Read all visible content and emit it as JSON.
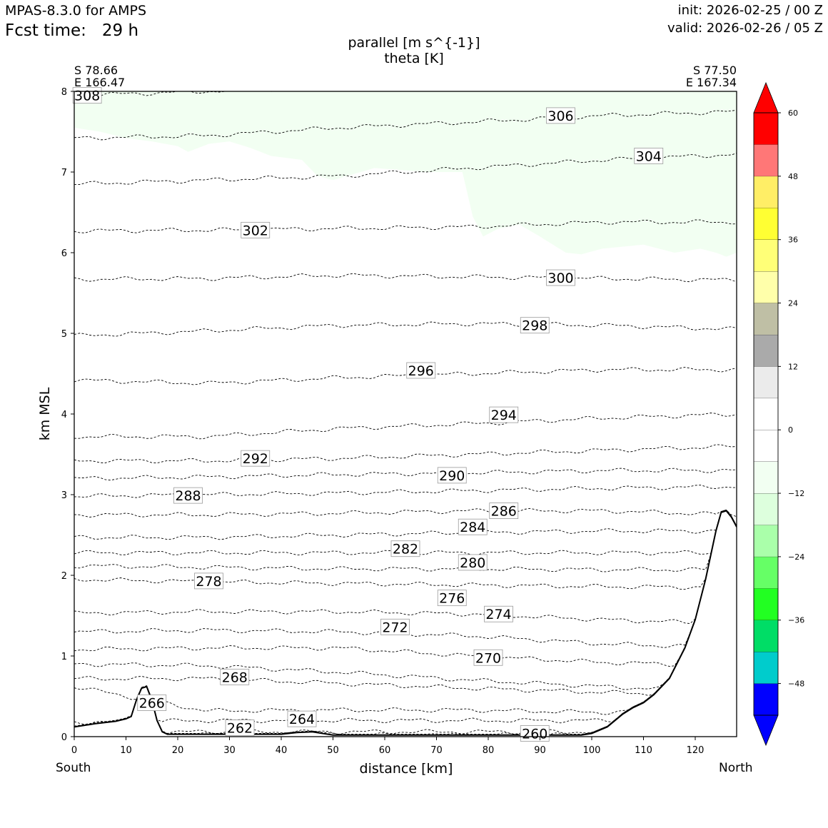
{
  "header": {
    "model": "MPAS-8.3.0 for AMPS",
    "fcst_label": "Fcst time:",
    "fcst_value": "29 h",
    "init": "init: 2026-02-25 / 00 Z",
    "valid": "valid: 2026-02-26 / 05 Z"
  },
  "endpoints": {
    "start_lat": "S 78.66",
    "start_lon": "E 166.47",
    "end_lat": "S 77.50",
    "end_lon": "E 167.34",
    "south_label": "South",
    "north_label": "North"
  },
  "chart_data": {
    "type": "contour",
    "title": "parallel [m s^{-1}]",
    "subtitle": "theta [K]",
    "xlabel": "distance [km]",
    "ylabel": "km MSL",
    "xlim": [
      0,
      128
    ],
    "ylim": [
      0,
      8
    ],
    "xticks": [
      0,
      10,
      20,
      30,
      40,
      50,
      60,
      70,
      80,
      90,
      100,
      110,
      120
    ],
    "yticks": [
      0,
      1,
      2,
      3,
      4,
      5,
      6,
      7,
      8
    ],
    "grid": false,
    "colorbar": {
      "levels": [
        -54,
        -48,
        -42,
        -36,
        -30,
        -24,
        -18,
        -12,
        -6,
        0,
        6,
        12,
        18,
        24,
        30,
        36,
        42,
        48,
        54,
        60
      ],
      "tick_labels": [
        "60",
        "48",
        "36",
        "24",
        "12",
        "0",
        "−12",
        "−24",
        "−36",
        "−48"
      ],
      "tick_values": [
        60,
        48,
        36,
        24,
        12,
        0,
        -12,
        -24,
        -36,
        -48
      ],
      "colors": [
        "#0000ff",
        "#00cccc",
        "#00dd66",
        "#22ff22",
        "#66ff66",
        "#aaffaa",
        "#ddffdd",
        "#f2fff2",
        "#ffffff",
        "#ffffff",
        "#ebebeb",
        "#aaaaaa",
        "#bfbfa5",
        "#ffffaa",
        "#ffff77",
        "#ffff33",
        "#ffee66",
        "#ff7777",
        "#ff0000"
      ],
      "under_color": "#0000ff",
      "over_color": "#ff0000"
    },
    "shading": {
      "color": "#f2fff2",
      "boundary": [
        [
          0,
          8.0
        ],
        [
          0,
          7.55
        ],
        [
          5,
          7.5
        ],
        [
          10,
          7.42
        ],
        [
          15,
          7.38
        ],
        [
          20,
          7.32
        ],
        [
          22,
          7.25
        ],
        [
          26,
          7.35
        ],
        [
          30,
          7.38
        ],
        [
          34,
          7.3
        ],
        [
          38,
          7.2
        ],
        [
          44,
          7.15
        ],
        [
          47,
          6.95
        ],
        [
          50,
          6.9
        ],
        [
          58,
          7.05
        ],
        [
          68,
          7.0
        ],
        [
          75,
          7.0
        ],
        [
          77,
          6.45
        ],
        [
          79,
          6.2
        ],
        [
          82,
          6.3
        ],
        [
          86,
          6.35
        ],
        [
          90,
          6.2
        ],
        [
          95,
          6.0
        ],
        [
          98,
          5.98
        ],
        [
          102,
          6.05
        ],
        [
          110,
          6.1
        ],
        [
          116,
          6.0
        ],
        [
          121,
          6.05
        ],
        [
          124,
          6.0
        ],
        [
          126,
          5.95
        ],
        [
          128,
          6.0
        ],
        [
          128,
          8.0
        ]
      ]
    },
    "terrain": [
      [
        0,
        0.12
      ],
      [
        4,
        0.16
      ],
      [
        8,
        0.19
      ],
      [
        10,
        0.22
      ],
      [
        11,
        0.25
      ],
      [
        12,
        0.45
      ],
      [
        13,
        0.6
      ],
      [
        14,
        0.62
      ],
      [
        15,
        0.45
      ],
      [
        16,
        0.2
      ],
      [
        17,
        0.06
      ],
      [
        18,
        0.03
      ],
      [
        20,
        0.03
      ],
      [
        30,
        0.03
      ],
      [
        40,
        0.03
      ],
      [
        43,
        0.05
      ],
      [
        46,
        0.06
      ],
      [
        50,
        0.02
      ],
      [
        60,
        0.02
      ],
      [
        80,
        0.02
      ],
      [
        90,
        0.02
      ],
      [
        98,
        0.02
      ],
      [
        100,
        0.04
      ],
      [
        103,
        0.12
      ],
      [
        106,
        0.28
      ],
      [
        108,
        0.36
      ],
      [
        110,
        0.42
      ],
      [
        112,
        0.52
      ],
      [
        115,
        0.72
      ],
      [
        118,
        1.1
      ],
      [
        120,
        1.45
      ],
      [
        122,
        1.95
      ],
      [
        124,
        2.55
      ],
      [
        125,
        2.78
      ],
      [
        126,
        2.8
      ],
      [
        127,
        2.72
      ],
      [
        128,
        2.6
      ]
    ],
    "theta_contours": [
      {
        "level": 260,
        "y": [
          0.02,
          0.02,
          0.02,
          0.02,
          0.02,
          0.02
        ],
        "label": "260",
        "label_x": 89,
        "label_y": 0.04
      },
      {
        "level": 262,
        "y": [
          0.05,
          0.06,
          0.06,
          0.06,
          0.06,
          0.08
        ],
        "label": "262",
        "label_x": 32,
        "label_y": 0.11
      },
      {
        "level": 264,
        "y": [
          0.18,
          0.2,
          0.2,
          0.2,
          0.2,
          0.25
        ],
        "label": "264",
        "label_x": 44,
        "label_y": 0.22
      },
      {
        "level": 266,
        "y": [
          0.62,
          0.32,
          0.33,
          0.33,
          0.3,
          0.35
        ],
        "label": "266",
        "label_x": 15,
        "label_y": 0.42
      },
      {
        "level": 268,
        "y": [
          0.72,
          0.72,
          0.66,
          0.6,
          0.55,
          0.5
        ],
        "label": "268",
        "label_x": 31,
        "label_y": 0.74
      },
      {
        "level": 270,
        "y": [
          0.9,
          0.88,
          0.8,
          0.7,
          0.62,
          0.55
        ],
        "label": "270",
        "label_x": 80,
        "label_y": 0.98
      },
      {
        "level": 272,
        "y": [
          1.08,
          1.1,
          1.1,
          1.0,
          0.92,
          0.88
        ],
        "label": "272",
        "label_x": 62,
        "label_y": 1.36
      },
      {
        "level": 274,
        "y": [
          1.3,
          1.32,
          1.3,
          1.25,
          1.15,
          1.1
        ],
        "label": "274",
        "label_x": 82,
        "label_y": 1.52
      },
      {
        "level": 276,
        "y": [
          1.53,
          1.55,
          1.55,
          1.52,
          1.45,
          1.4
        ],
        "label": "276",
        "label_x": 73,
        "label_y": 1.72
      },
      {
        "level": 278,
        "y": [
          1.95,
          1.92,
          1.9,
          1.88,
          1.86,
          1.85
        ],
        "label": "278",
        "label_x": 26,
        "label_y": 1.93
      },
      {
        "level": 280,
        "y": [
          2.12,
          2.1,
          2.08,
          2.08,
          2.07,
          2.07
        ],
        "label": "280",
        "label_x": 77,
        "label_y": 2.16
      },
      {
        "level": 282,
        "y": [
          2.28,
          2.28,
          2.28,
          2.28,
          2.28,
          2.28
        ],
        "label": "282",
        "label_x": 64,
        "label_y": 2.33
      },
      {
        "level": 284,
        "y": [
          2.47,
          2.47,
          2.5,
          2.53,
          2.55,
          2.55
        ],
        "label": "284",
        "label_x": 77,
        "label_y": 2.6
      },
      {
        "level": 286,
        "y": [
          2.75,
          2.75,
          2.77,
          2.8,
          2.8,
          2.75
        ],
        "label": "286",
        "label_x": 83,
        "label_y": 2.8
      },
      {
        "level": 288,
        "y": [
          2.98,
          3.0,
          3.02,
          3.05,
          3.08,
          3.1
        ],
        "label": "288",
        "label_x": 22,
        "label_y": 2.99
      },
      {
        "level": 290,
        "y": [
          3.2,
          3.22,
          3.25,
          3.27,
          3.3,
          3.3
        ],
        "label": "290",
        "label_x": 73,
        "label_y": 3.24
      },
      {
        "level": 292,
        "y": [
          3.42,
          3.42,
          3.45,
          3.5,
          3.55,
          3.6
        ],
        "label": "292",
        "label_x": 35,
        "label_y": 3.45
      },
      {
        "level": 294,
        "y": [
          3.72,
          3.72,
          3.82,
          3.88,
          3.95,
          4.0
        ],
        "label": "294",
        "label_x": 83,
        "label_y": 3.99
      },
      {
        "level": 296,
        "y": [
          4.42,
          4.38,
          4.45,
          4.5,
          4.55,
          4.55
        ],
        "label": "296",
        "label_x": 67,
        "label_y": 4.54
      },
      {
        "level": 298,
        "y": [
          4.97,
          5.03,
          5.1,
          5.12,
          5.1,
          5.05
        ],
        "label": "298",
        "label_x": 89,
        "label_y": 5.1
      },
      {
        "level": 300,
        "y": [
          5.67,
          5.68,
          5.72,
          5.7,
          5.68,
          5.66
        ],
        "label": "300",
        "label_x": 94,
        "label_y": 5.69
      },
      {
        "level": 302,
        "y": [
          6.27,
          6.28,
          6.3,
          6.32,
          6.38,
          6.38
        ],
        "label": "302",
        "label_x": 35,
        "label_y": 6.28
      },
      {
        "level": 304,
        "y": [
          6.85,
          6.9,
          6.95,
          7.05,
          7.15,
          7.22
        ],
        "label": "304",
        "label_x": 111,
        "label_y": 7.2
      },
      {
        "level": 306,
        "y": [
          7.42,
          7.45,
          7.55,
          7.62,
          7.7,
          7.75
        ],
        "label": "306",
        "label_x": 94,
        "label_y": 7.7
      },
      {
        "level": 308,
        "y": [
          7.95,
          8.0,
          8.05,
          8.1,
          8.1,
          8.1
        ],
        "label": "308",
        "label_x": 2.5,
        "label_y": 7.95
      }
    ]
  }
}
